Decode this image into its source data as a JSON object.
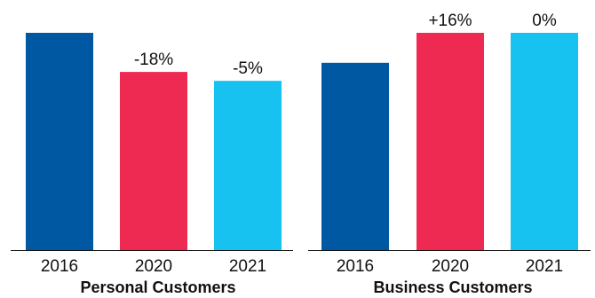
{
  "chart_data": [
    {
      "type": "bar",
      "title": "Personal Customers",
      "categories": [
        "2016",
        "2020",
        "2021"
      ],
      "values": [
        100,
        82,
        77.9
      ],
      "data_labels": [
        "",
        "-18%",
        "-5%"
      ],
      "colors": [
        "#0058A3",
        "#EE2A52",
        "#17C2F0"
      ],
      "ylim": [
        0,
        100
      ],
      "grid": false
    },
    {
      "type": "bar",
      "title": "Business Customers",
      "categories": [
        "2016",
        "2020",
        "2021"
      ],
      "values": [
        86.2,
        100,
        100
      ],
      "data_labels": [
        "",
        "+16%",
        "0%"
      ],
      "colors": [
        "#0058A3",
        "#EE2A52",
        "#17C2F0"
      ],
      "ylim": [
        0,
        100
      ],
      "grid": false
    }
  ]
}
